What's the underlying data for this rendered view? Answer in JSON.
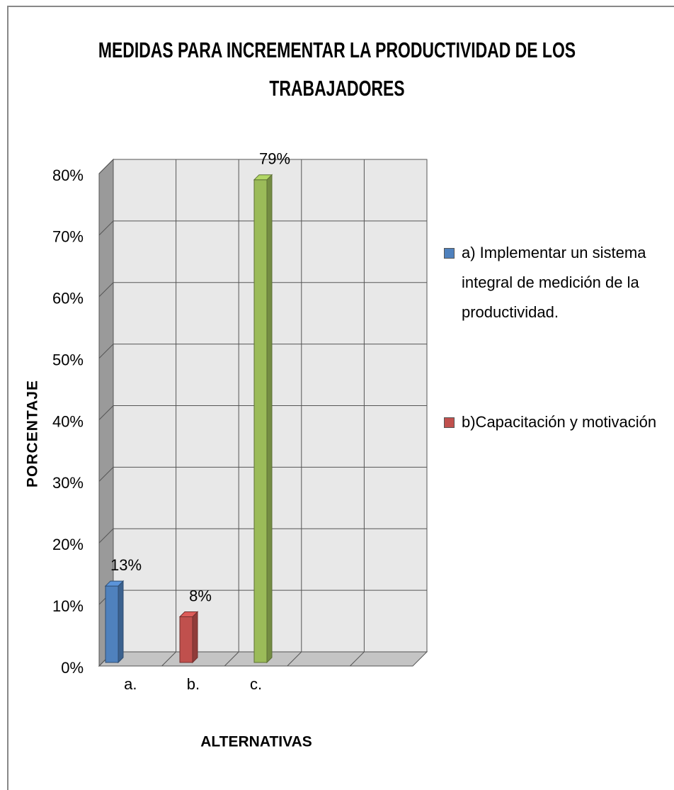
{
  "chart_data": {
    "type": "bar3d",
    "title": "MEDIDAS PARA INCREMENTAR LA PRODUCTIVIDAD DE LOS TRABAJADORES",
    "x_label": "ALTERNATIVAS",
    "y_label": "PORCENTAJE",
    "categories": [
      "a.",
      "b.",
      "c.",
      null,
      null
    ],
    "values": [
      13,
      8,
      79,
      null,
      null
    ],
    "value_labels": [
      "13%",
      "8%",
      "79%",
      null,
      null
    ],
    "colors": [
      "#4f81bd",
      "#c0504d",
      "#9bbb59",
      null,
      null
    ],
    "ylim": [
      0,
      80
    ],
    "yticks": [
      {
        "value": 0,
        "label": "0%"
      },
      {
        "value": 10,
        "label": "10%"
      },
      {
        "value": 20,
        "label": "20%"
      },
      {
        "value": 30,
        "label": "30%"
      },
      {
        "value": 40,
        "label": "40%"
      },
      {
        "value": 50,
        "label": "50%"
      },
      {
        "value": 60,
        "label": "60%"
      },
      {
        "value": 70,
        "label": "70%"
      },
      {
        "value": 80,
        "label": "80%"
      }
    ],
    "grid": true,
    "legend": {
      "position": "right",
      "items": [
        {
          "name": "a) Implementar un sistema integral de medición de la productividad.",
          "color": "#4f81bd"
        },
        {
          "name": "b)Capacitación y motivación",
          "color": "#c0504d"
        }
      ]
    }
  }
}
